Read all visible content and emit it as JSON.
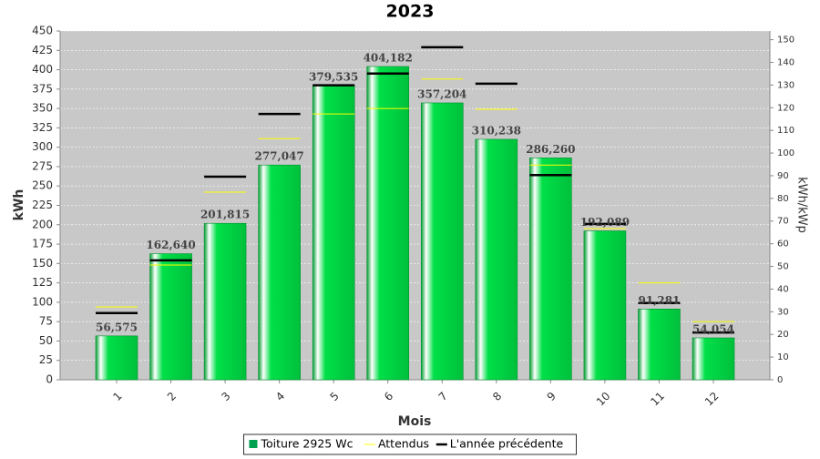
{
  "chart_data": {
    "type": "bar",
    "title": "2023",
    "x_label": "Mois",
    "y_label": "kWh",
    "y2_label": "kWh/kWp",
    "categories": [
      "1",
      "2",
      "3",
      "4",
      "5",
      "6",
      "7",
      "8",
      "9",
      "10",
      "11",
      "12"
    ],
    "series": [
      {
        "name": "Toiture 2925 Wc",
        "type": "bar",
        "color": "#00d040",
        "values": [
          56.575,
          162.64,
          201.815,
          277.047,
          379.535,
          404.182,
          357.204,
          310.238,
          286.26,
          192.089,
          91.281,
          54.054
        ],
        "value_labels": [
          "56,575",
          "162,640",
          "201,815",
          "277,047",
          "379,535",
          "404,182",
          "357,204",
          "310,238",
          "286,260",
          "192,089",
          "91,281",
          "54,054"
        ]
      },
      {
        "name": "Attendus",
        "type": "tick",
        "color": "#ffff00",
        "values": [
          94,
          148,
          242,
          311,
          343,
          350,
          388,
          349,
          277,
          195,
          125,
          75
        ]
      },
      {
        "name": "L'année précédente",
        "type": "tick",
        "color": "#000000",
        "values": [
          86,
          154,
          262,
          343,
          380,
          395,
          429,
          382,
          264,
          201,
          99,
          61
        ]
      }
    ],
    "ylim": [
      0,
      450
    ],
    "yticks": [
      0,
      25,
      50,
      75,
      100,
      125,
      150,
      175,
      200,
      225,
      250,
      275,
      300,
      325,
      350,
      375,
      400,
      425,
      450
    ],
    "y2lim": [
      0,
      153.85
    ],
    "y2ticks": [
      0,
      10,
      20,
      30,
      40,
      50,
      60,
      70,
      80,
      90,
      100,
      110,
      120,
      130,
      140,
      150
    ],
    "grid": true,
    "legend": "bottom"
  }
}
